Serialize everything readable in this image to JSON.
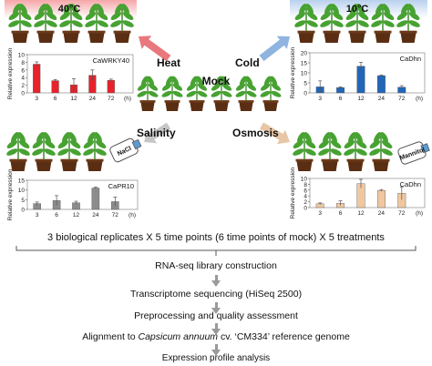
{
  "treatments": {
    "heat": {
      "temp_label": "40°C",
      "arrow_label": "Heat",
      "arrow_color": "#e8787d",
      "bg_color": "#f3a9ab"
    },
    "cold": {
      "temp_label": "10°C",
      "arrow_label": "Cold",
      "arrow_color": "#8fb4e0",
      "bg_color": "#bcd3ee"
    },
    "mock": {
      "label": "Mock"
    },
    "salinity": {
      "arrow_label": "Salinity",
      "arrow_color": "#c6c6c6",
      "reagent_label": "NaCl"
    },
    "osmosis": {
      "arrow_label": "Osmosis",
      "arrow_color": "#e8c6a6",
      "reagent_label": "Mannitol"
    }
  },
  "chart_data": [
    {
      "type": "bar",
      "panel": "heat",
      "gene": "CaWRKY40",
      "categories": [
        "3",
        "6",
        "12",
        "24",
        "72"
      ],
      "values": [
        7.5,
        3.2,
        2.1,
        4.6,
        3.3
      ],
      "errors": [
        0.6,
        0.3,
        1.6,
        1.4,
        0.3
      ],
      "ylim": [
        0,
        10
      ],
      "yticks": [
        0,
        2,
        4,
        6,
        8,
        10
      ],
      "ylabel": "Relative expression",
      "x_unit": "(h)",
      "color": "#e8212a"
    },
    {
      "type": "bar",
      "panel": "cold",
      "gene": "CaDhn",
      "categories": [
        "3",
        "6",
        "12",
        "24",
        "72"
      ],
      "values": [
        3.0,
        2.6,
        13.3,
        8.6,
        2.8
      ],
      "errors": [
        3.0,
        0.4,
        2.0,
        0.3,
        0.8
      ],
      "ylim": [
        0,
        20
      ],
      "yticks": [
        0,
        5,
        10,
        15,
        20
      ],
      "ylabel": "Relative expression",
      "x_unit": "(h)",
      "color": "#2166b8"
    },
    {
      "type": "bar",
      "panel": "salinity",
      "gene": "CaPR10",
      "categories": [
        "3",
        "6",
        "12",
        "24",
        "72"
      ],
      "values": [
        3.0,
        4.6,
        3.4,
        11.0,
        4.0
      ],
      "errors": [
        0.8,
        2.5,
        0.8,
        0.5,
        2.4
      ],
      "ylim": [
        0,
        15
      ],
      "yticks": [
        0,
        5,
        10,
        15
      ],
      "ylabel": "Relative expression",
      "x_unit": "(h)",
      "color": "#8c8c8c"
    },
    {
      "type": "bar",
      "panel": "osmosis",
      "gene": "CaDhn",
      "categories": [
        "3",
        "6",
        "12",
        "24",
        "72"
      ],
      "values": [
        1.3,
        1.5,
        8.2,
        5.9,
        4.9
      ],
      "errors": [
        0.3,
        0.8,
        1.5,
        0.3,
        2.2
      ],
      "ylim": [
        0,
        10
      ],
      "yticks": [
        0,
        2,
        4,
        6,
        8,
        10
      ],
      "ylabel": "Relative expression",
      "x_unit": "(h)",
      "color": "#f0c8a0"
    }
  ],
  "workflow": {
    "summary": "3 biological replicates X 5 time points (6 time points of mock) X 5 treatments",
    "steps": [
      "RNA-seq library construction",
      "Transcriptome sequencing (HiSeq 2500)",
      "Preprocessing and quality assessment",
      {
        "prefix": "Alignment to ",
        "italic": "Capsicum annuum",
        "suffix": " cv. ‘CM334’ reference genome"
      },
      "Expression profile analysis"
    ]
  }
}
